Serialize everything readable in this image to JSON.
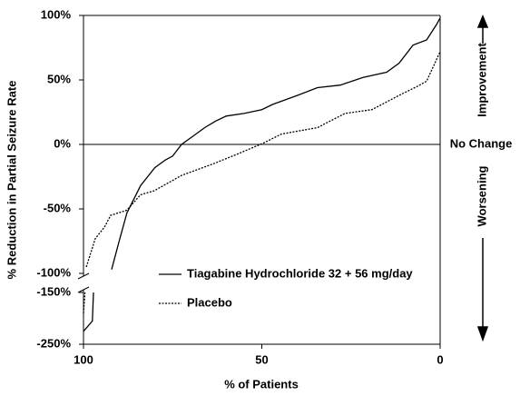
{
  "chart_data": {
    "type": "line",
    "xlabel": "% of Patients",
    "ylabel": "% Reduction in Partial Seizure Rate",
    "xlim": [
      100,
      0
    ],
    "xticks": [
      100,
      50,
      0
    ],
    "ylim": [
      -250,
      100
    ],
    "axis_break": [
      -100,
      -150
    ],
    "yticks": [
      {
        "value": 100,
        "label": "100%"
      },
      {
        "value": 50,
        "label": "50%"
      },
      {
        "value": 0,
        "label": "0%"
      },
      {
        "value": -50,
        "label": "-50%"
      },
      {
        "value": -100,
        "label": "-100%"
      },
      {
        "value": -150,
        "label": "-150%"
      },
      {
        "value": -250,
        "label": "-250%"
      }
    ],
    "annotations": [
      {
        "text": "Improvement"
      },
      {
        "text": "No Change",
        "y": 0
      },
      {
        "text": "Worsening"
      }
    ],
    "series": [
      {
        "name": "Tiagabine Hydrochloride 32 + 56 mg/day",
        "color": "#000000",
        "style": "solid",
        "x": [
          100,
          97.5,
          97.2,
          95,
          92.1,
          90,
          87.8,
          84,
          80,
          77,
          75,
          72.5,
          69,
          66,
          63,
          60,
          55,
          50,
          47,
          40,
          34.4,
          28,
          21.6,
          15,
          11.5,
          7.6,
          3.8,
          1,
          0
        ],
        "values": [
          -225,
          -205,
          -150,
          null,
          -97,
          -75,
          -53,
          -32,
          -18,
          -12,
          -9,
          0,
          7,
          13,
          18,
          22,
          24,
          27,
          31,
          38,
          44,
          46,
          52,
          56,
          63,
          77,
          81,
          93,
          98
        ]
      },
      {
        "name": "Placebo",
        "color": "#000000",
        "style": "dotted",
        "x": [
          100,
          99.6,
          99.4,
          99.2,
          96.7,
          94.1,
          92.4,
          87.8,
          84,
          80.2,
          72.5,
          63.6,
          57.3,
          49.6,
          44.5,
          34.4,
          26.7,
          19.1,
          11.5,
          6.4,
          3.8,
          0
        ],
        "values": [
          -190,
          -150,
          null,
          -95,
          -73,
          -64,
          -55,
          -51,
          -39,
          -36,
          -24,
          -15,
          -8,
          1,
          8,
          13,
          24,
          27,
          38,
          45,
          49,
          72
        ]
      }
    ]
  }
}
